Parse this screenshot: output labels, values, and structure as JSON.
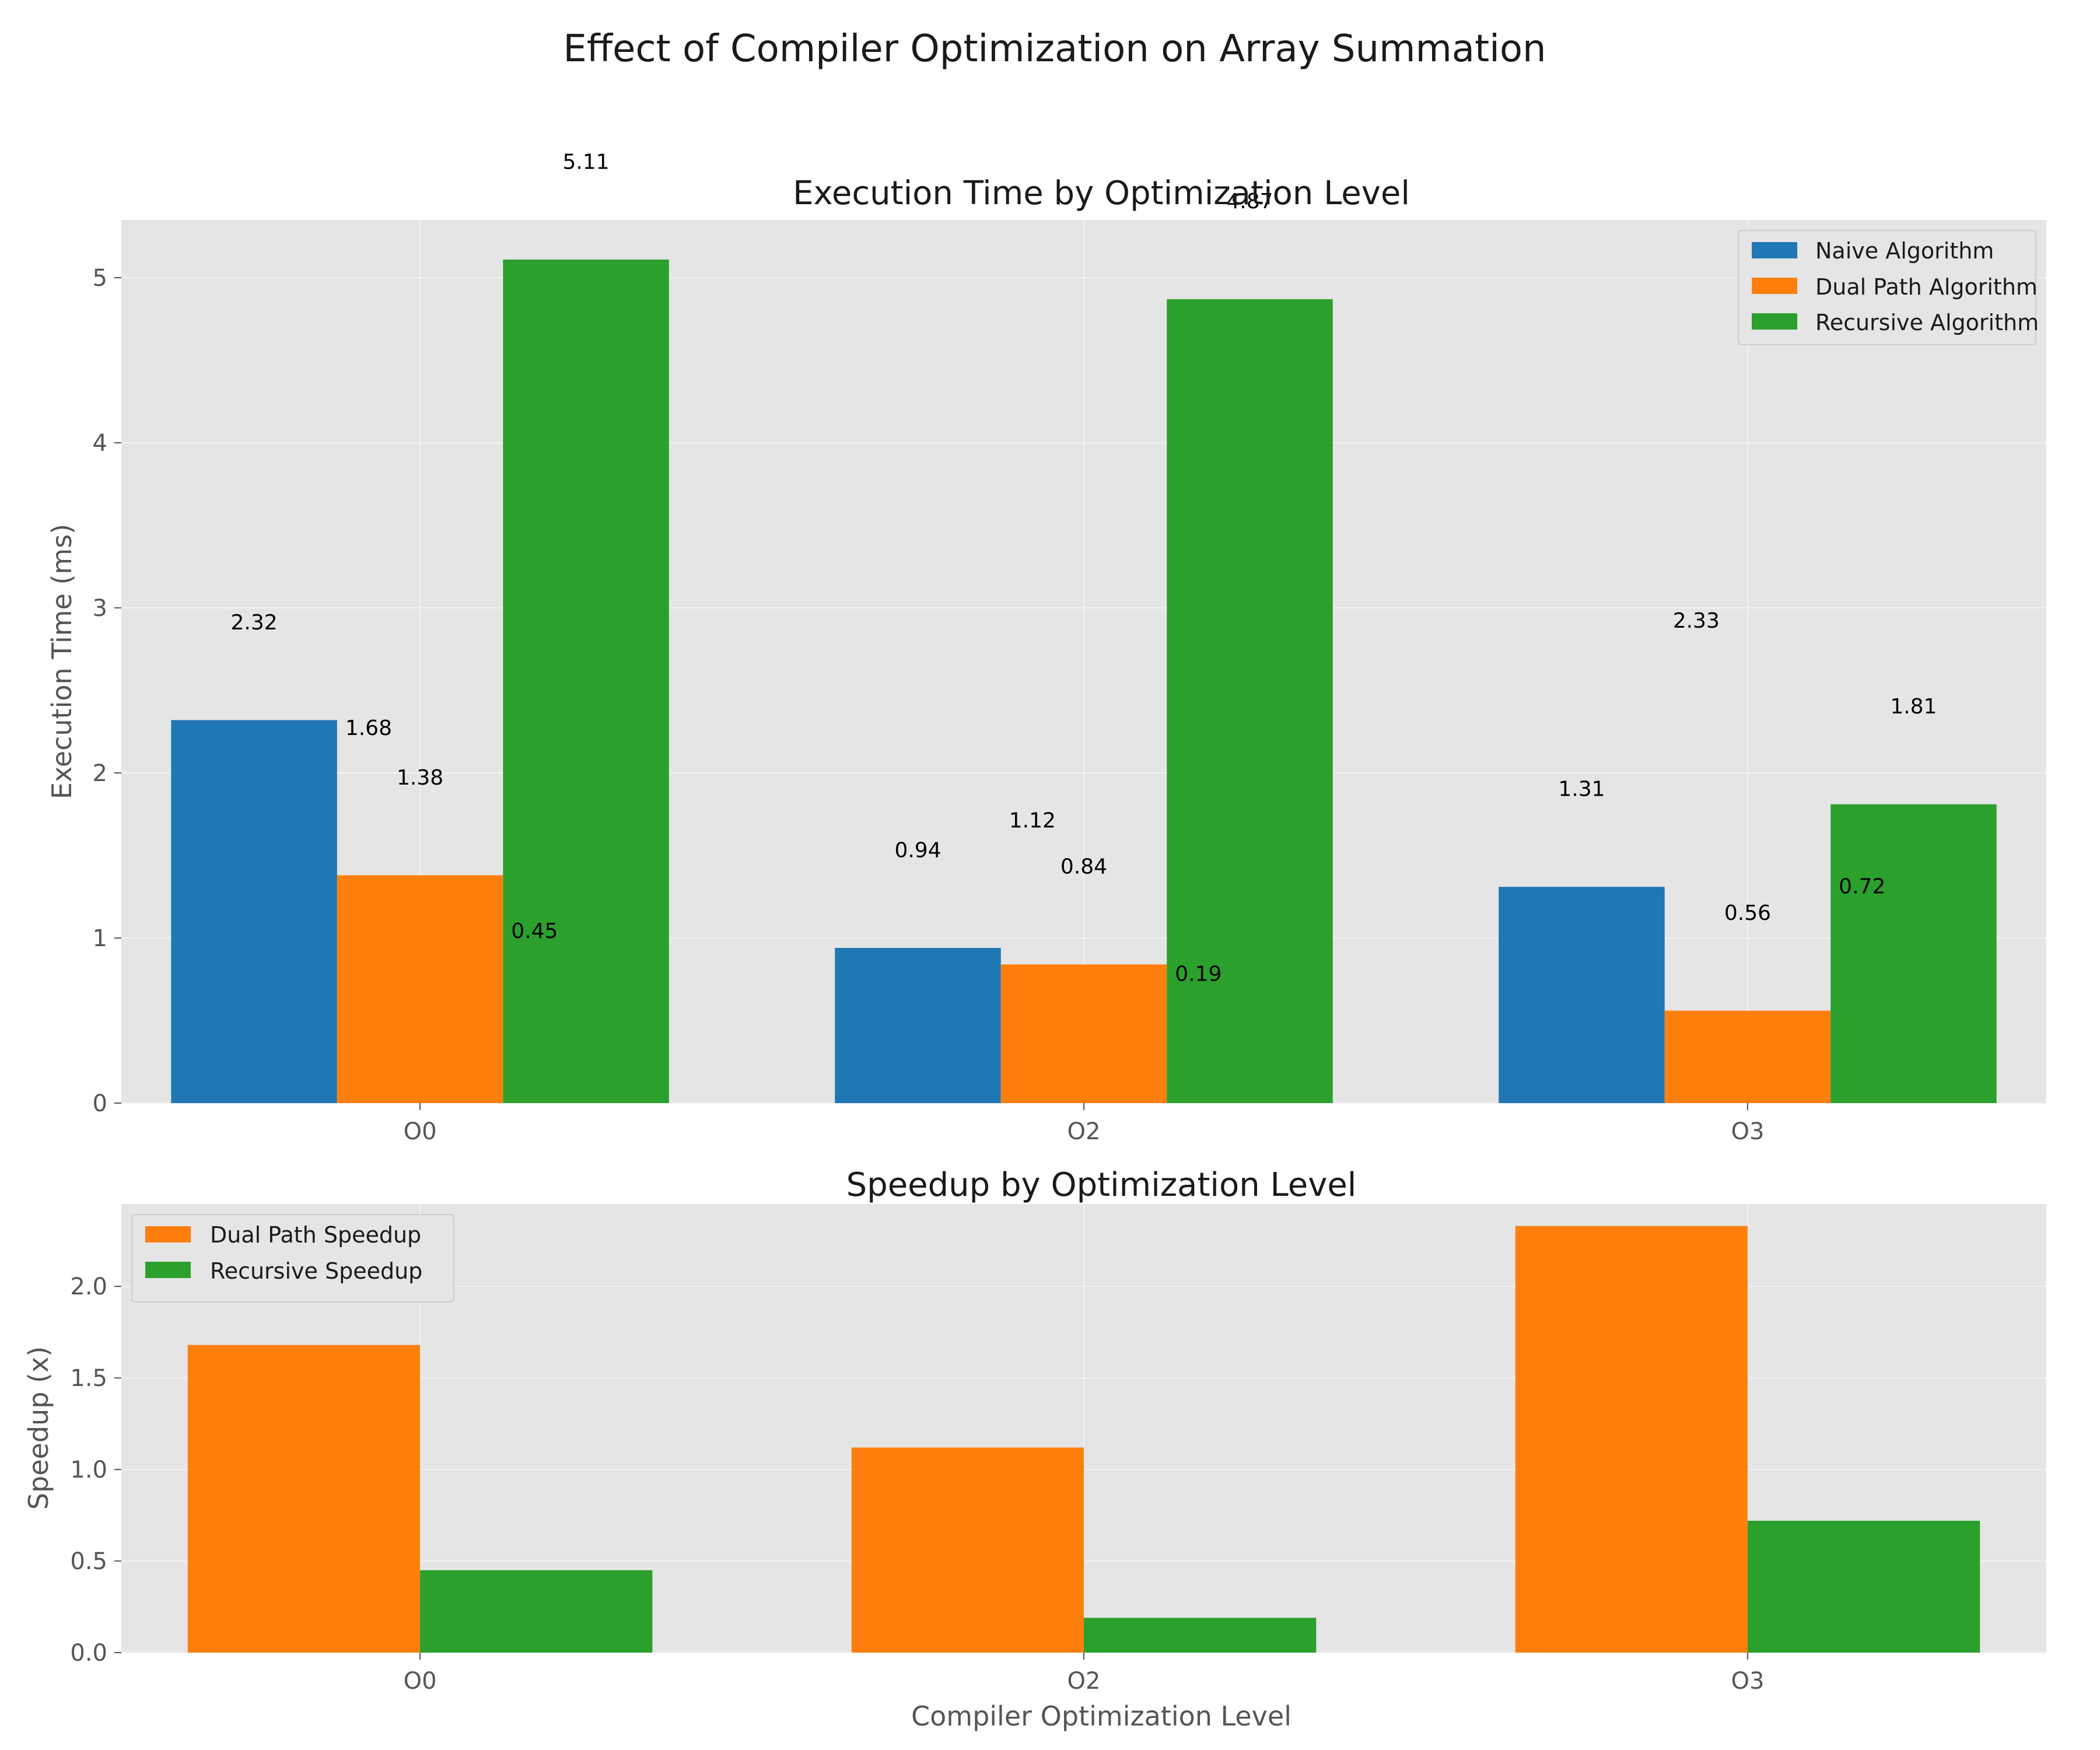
{
  "suptitle": "Effect of Compiler Optimization on Array Summation",
  "colors": {
    "naive": "#1f77b4",
    "dual": "#ff7f0e",
    "recursive": "#2ca02c",
    "axes_bg": "#e5e5e5",
    "grid": "#f2f2f2"
  },
  "chart_data": [
    {
      "type": "bar",
      "title": "Execution Time by Optimization Level",
      "xlabel": "",
      "ylabel": "Execution Time (ms)",
      "categories": [
        "O0",
        "O2",
        "O3"
      ],
      "ylim": [
        0,
        5.35
      ],
      "yticks": [
        0,
        1,
        2,
        3,
        4,
        5
      ],
      "ytick_labels": [
        "0",
        "1",
        "2",
        "3",
        "4",
        "5"
      ],
      "grid": true,
      "legend_position": "top-right",
      "series": [
        {
          "name": "Naive Algorithm",
          "color": "#1f77b4",
          "values": [
            2.32,
            0.94,
            1.31
          ]
        },
        {
          "name": "Dual Path Algorithm",
          "color": "#ff7f0e",
          "values": [
            1.38,
            0.84,
            0.56
          ]
        },
        {
          "name": "Recursive Algorithm",
          "color": "#2ca02c",
          "values": [
            5.11,
            4.87,
            1.81
          ]
        }
      ],
      "value_labels": [
        {
          "text": "2.32",
          "x": "O0",
          "series": "Naive Algorithm",
          "y": 2.87
        },
        {
          "text": "1.38",
          "x": "O0",
          "series": "Dual Path Algorithm",
          "y": 1.93
        },
        {
          "text": "5.11",
          "x": "O0",
          "series": "Recursive Algorithm",
          "y": 5.66
        },
        {
          "text": "0.94",
          "x": "O2",
          "series": "Naive Algorithm",
          "y": 1.49
        },
        {
          "text": "0.84",
          "x": "O2",
          "series": "Dual Path Algorithm",
          "y": 1.39
        },
        {
          "text": "4.87",
          "x": "O2",
          "series": "Recursive Algorithm",
          "y": 5.42
        },
        {
          "text": "1.31",
          "x": "O3",
          "series": "Naive Algorithm",
          "y": 1.86
        },
        {
          "text": "0.56",
          "x": "O3",
          "series": "Dual Path Algorithm",
          "y": 1.11
        },
        {
          "text": "1.81",
          "x": "O3",
          "series": "Recursive Algorithm",
          "y": 2.36
        }
      ],
      "speedup_labels": [
        {
          "text": "1.68",
          "x": "O0",
          "series": "Dual Path Algorithm",
          "y": 2.23
        },
        {
          "text": "0.45",
          "x": "O0",
          "series": "Recursive Algorithm",
          "y": 1.0
        },
        {
          "text": "1.12",
          "x": "O2",
          "series": "Dual Path Algorithm",
          "y": 1.67
        },
        {
          "text": "0.19",
          "x": "O2",
          "series": "Recursive Algorithm",
          "y": 0.74
        },
        {
          "text": "2.33",
          "x": "O3",
          "series": "Dual Path Algorithm",
          "y": 2.88
        },
        {
          "text": "0.72",
          "x": "O3",
          "series": "Recursive Algorithm",
          "y": 1.27
        }
      ]
    },
    {
      "type": "bar",
      "title": "Speedup by Optimization Level",
      "xlabel": "Compiler Optimization Level",
      "ylabel": "Speedup (x)",
      "categories": [
        "O0",
        "O2",
        "O3"
      ],
      "ylim": [
        0,
        2.45
      ],
      "yticks": [
        0,
        0.5,
        1.0,
        1.5,
        2.0
      ],
      "ytick_labels": [
        "0.0",
        "0.5",
        "1.0",
        "1.5",
        "2.0"
      ],
      "grid": true,
      "legend_position": "top-left",
      "series": [
        {
          "name": "Dual Path Speedup",
          "color": "#ff7f0e",
          "values": [
            1.68,
            1.12,
            2.33
          ]
        },
        {
          "name": "Recursive Speedup",
          "color": "#2ca02c",
          "values": [
            0.45,
            0.19,
            0.72
          ]
        }
      ]
    }
  ]
}
